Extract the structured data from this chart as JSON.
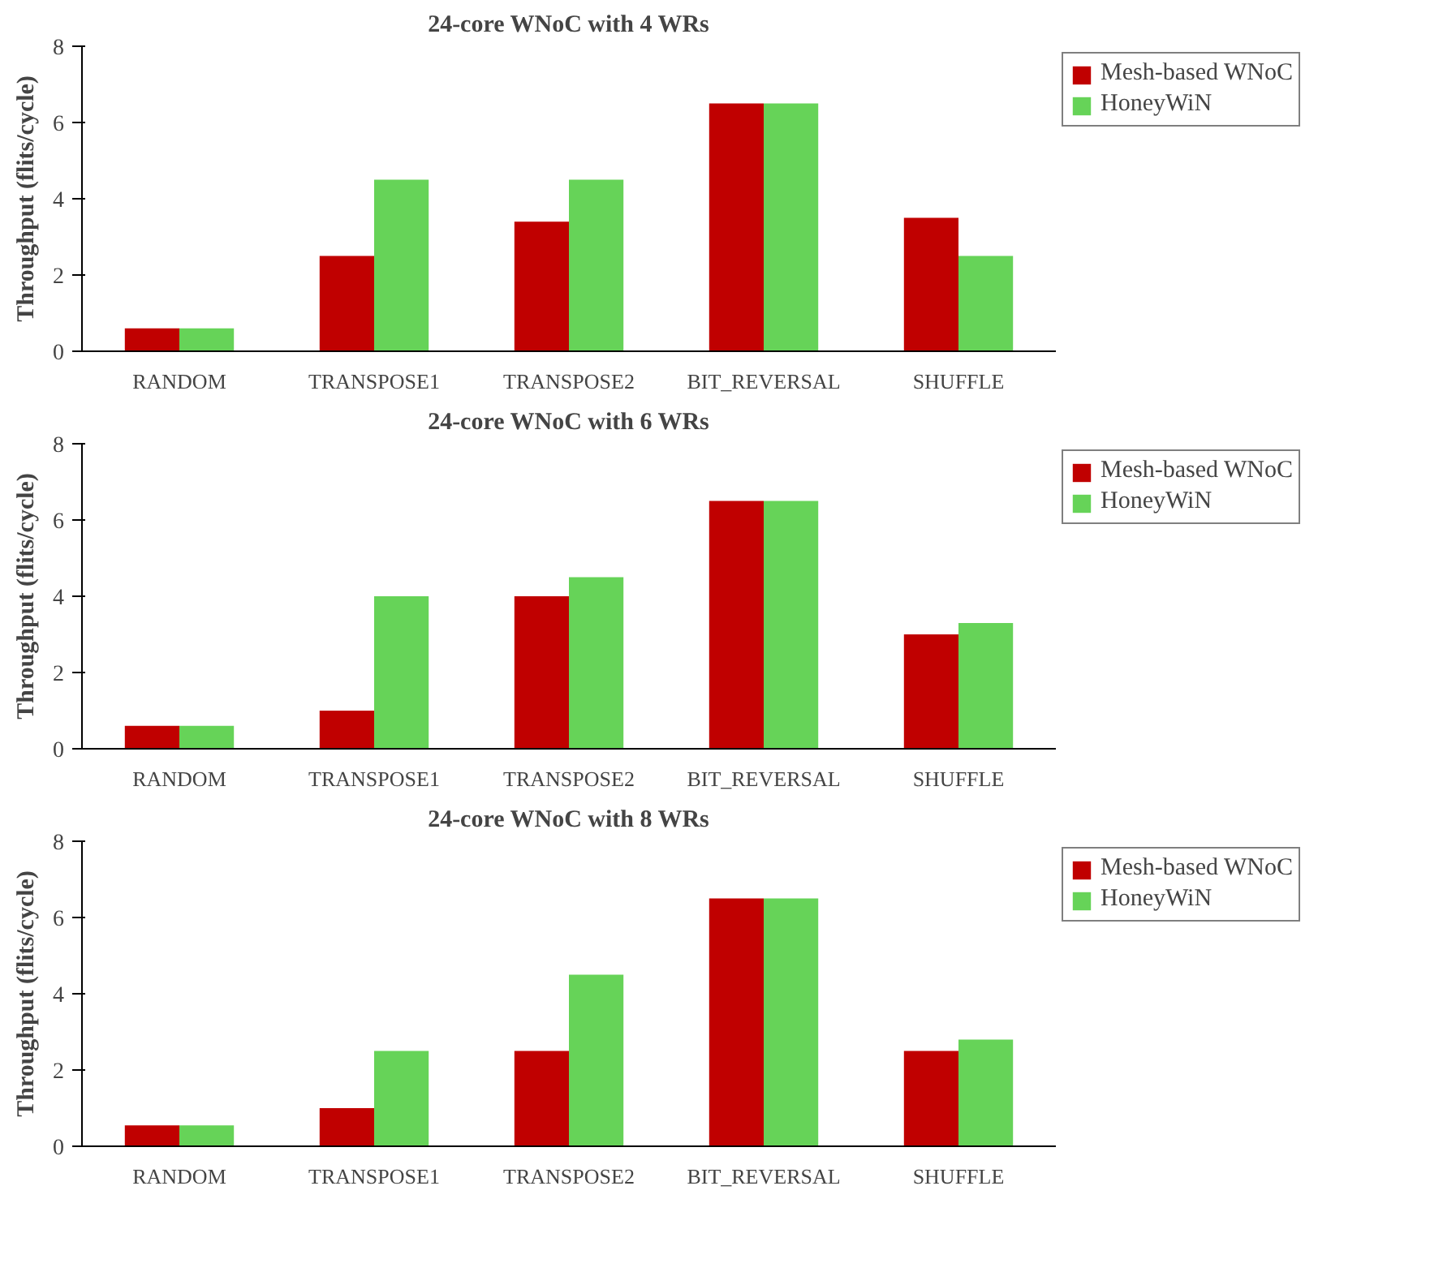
{
  "chart_data": [
    {
      "type": "bar",
      "title": "24-core WNoC with 4 WRs",
      "ylabel": "Throughput (flits/cycle)",
      "categories": [
        "RANDOM",
        "TRANSPOSE1",
        "TRANSPOSE2",
        "BIT_REVERSAL",
        "SHUFFLE"
      ],
      "ylim": [
        0,
        8
      ],
      "yticks": [
        0,
        2,
        4,
        6,
        8
      ],
      "legend": "right",
      "grid": false,
      "series": [
        {
          "name": "Mesh-based WNoC",
          "color": "#c00000",
          "values": [
            0.6,
            2.5,
            3.4,
            6.5,
            3.5
          ]
        },
        {
          "name": "HoneyWiN",
          "color": "#66d358",
          "values": [
            0.6,
            4.5,
            4.5,
            6.5,
            2.5
          ]
        }
      ]
    },
    {
      "type": "bar",
      "title": "24-core WNoC with 6 WRs",
      "ylabel": "Throughput (flits/cycle)",
      "categories": [
        "RANDOM",
        "TRANSPOSE1",
        "TRANSPOSE2",
        "BIT_REVERSAL",
        "SHUFFLE"
      ],
      "ylim": [
        0,
        8
      ],
      "yticks": [
        0,
        2,
        4,
        6,
        8
      ],
      "legend": "right",
      "grid": false,
      "series": [
        {
          "name": "Mesh-based WNoC",
          "color": "#c00000",
          "values": [
            0.6,
            1.0,
            4.0,
            6.5,
            3.0
          ]
        },
        {
          "name": "HoneyWiN",
          "color": "#66d358",
          "values": [
            0.6,
            4.0,
            4.5,
            6.5,
            3.3
          ]
        }
      ]
    },
    {
      "type": "bar",
      "title": "24-core WNoC with 8 WRs",
      "ylabel": "Throughput (flits/cycle)",
      "categories": [
        "RANDOM",
        "TRANSPOSE1",
        "TRANSPOSE2",
        "BIT_REVERSAL",
        "SHUFFLE"
      ],
      "ylim": [
        0,
        8
      ],
      "yticks": [
        0,
        2,
        4,
        6,
        8
      ],
      "legend": "right",
      "grid": false,
      "series": [
        {
          "name": "Mesh-based WNoC",
          "color": "#c00000",
          "values": [
            0.55,
            1.0,
            2.5,
            6.5,
            2.5
          ]
        },
        {
          "name": "HoneyWiN",
          "color": "#66d358",
          "values": [
            0.55,
            2.5,
            4.5,
            6.5,
            2.8
          ]
        }
      ]
    }
  ]
}
